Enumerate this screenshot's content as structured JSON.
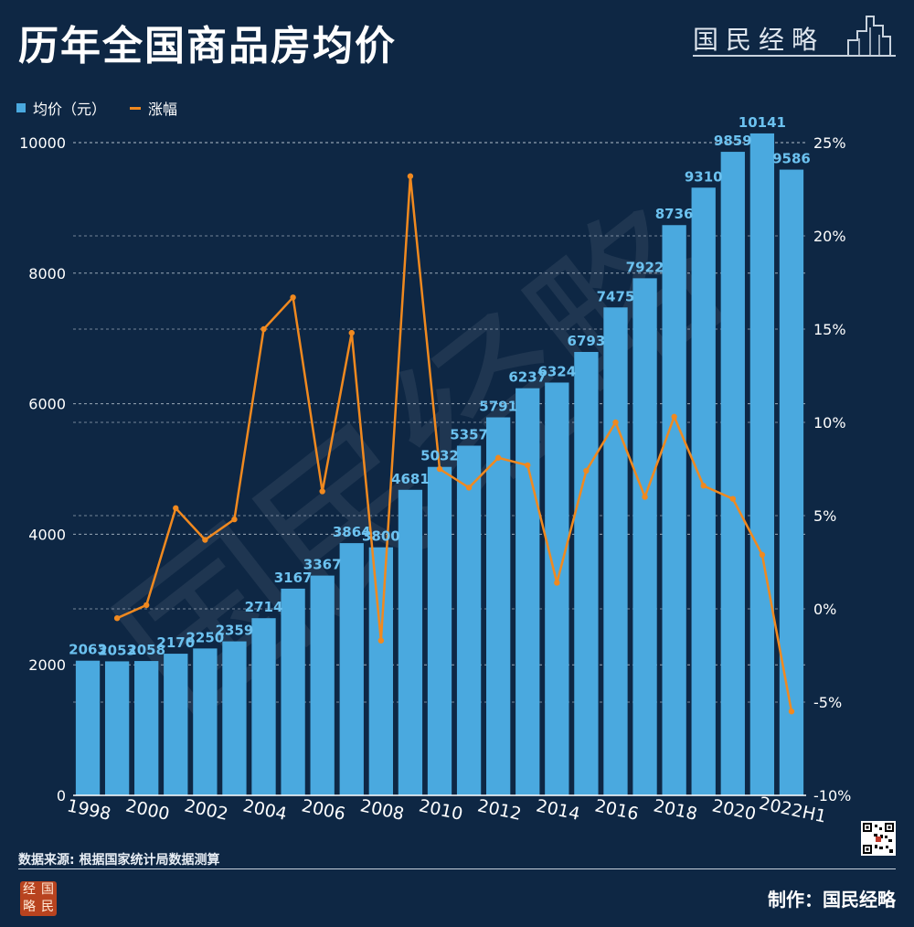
{
  "title": "历年全国商品房均价",
  "brand": {
    "text": "国民经略",
    "logo_chars": [
      "经",
      "国",
      "略",
      "民"
    ]
  },
  "legend": {
    "bar_label": "均价（元）",
    "line_label": "涨幅"
  },
  "source": "数据来源: 根据国家统计局数据测算",
  "maker": "制作：国民经略",
  "colors": {
    "background": "#0e2744",
    "bar": "#4aa9df",
    "bar_label": "#6cc2f0",
    "line": "#f0891f",
    "grid": "#c8d3de"
  },
  "chart_data": {
    "type": "bar",
    "categories": [
      "1998",
      "1999",
      "2000",
      "2001",
      "2002",
      "2003",
      "2004",
      "2005",
      "2006",
      "2007",
      "2008",
      "2009",
      "2010",
      "2011",
      "2012",
      "2013",
      "2014",
      "2015",
      "2016",
      "2017",
      "2018",
      "2019",
      "2020",
      "2021",
      "2022H1"
    ],
    "x_tick_labels": [
      "1998",
      "2000",
      "2002",
      "2004",
      "2006",
      "2008",
      "2010",
      "2012",
      "2014",
      "2016",
      "2018",
      "2020",
      "2022H1"
    ],
    "series": [
      {
        "name": "均价（元）",
        "type": "bar",
        "axis": "left",
        "values": [
          2063,
          2053,
          2058,
          2170,
          2250,
          2359,
          2714,
          3167,
          3367,
          3864,
          3800,
          4681,
          5032,
          5357,
          5791,
          6237,
          6324,
          6793,
          7475,
          7922,
          8736,
          9310,
          9859,
          10141,
          9586
        ]
      },
      {
        "name": "涨幅",
        "type": "line",
        "axis": "right",
        "unit": "%",
        "values": [
          null,
          -0.5,
          0.2,
          5.4,
          3.7,
          4.8,
          15.0,
          16.7,
          6.3,
          14.8,
          -1.7,
          23.2,
          7.5,
          6.5,
          8.1,
          7.7,
          1.4,
          7.4,
          10.0,
          6.0,
          10.3,
          6.6,
          5.9,
          2.9,
          -5.5
        ]
      }
    ],
    "ylim": [
      0,
      10000
    ],
    "y_ticks": [
      0,
      2000,
      4000,
      6000,
      8000,
      10000
    ],
    "y2lim": [
      -10,
      25
    ],
    "y2_tick_labels": [
      "-10%",
      "-5%",
      "0%",
      "5%",
      "10%",
      "15%",
      "20%",
      "25%"
    ],
    "grid": true,
    "legend_position": "top-left"
  }
}
